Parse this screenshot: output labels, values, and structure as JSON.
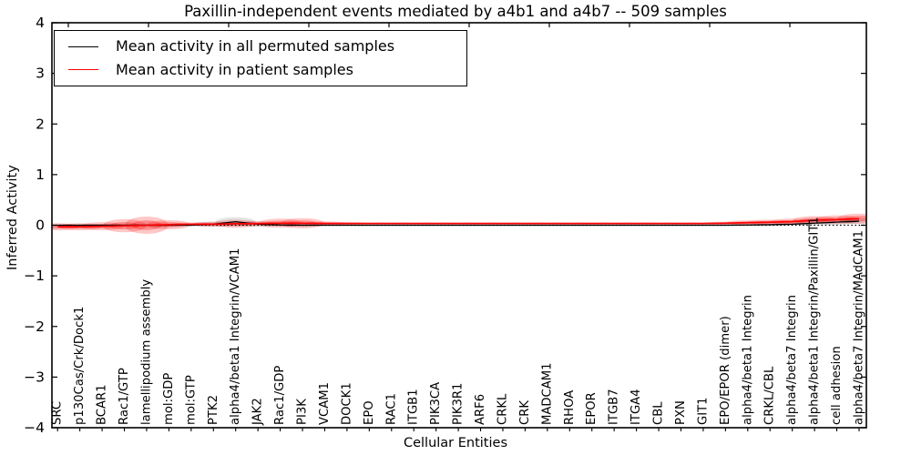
{
  "figure": {
    "title": "Paxillin-independent events mediated by a4b1 and a4b7 -- 509 samples",
    "xlabel": "Cellular Entities",
    "ylabel": "Inferred Activity"
  },
  "legend": {
    "entries": [
      {
        "label": "Mean activity in all permuted samples",
        "color": "#000000"
      },
      {
        "label": "Mean activity in patient samples",
        "color": "#ff0000"
      }
    ]
  },
  "chart_data": {
    "type": "line",
    "subtype": "violin-band-with-mean-lines",
    "title": "Paxillin-independent events mediated by a4b1 and a4b7 -- 509 samples",
    "xlabel": "Cellular Entities",
    "ylabel": "Inferred Activity",
    "ylim": [
      -4,
      4
    ],
    "yticks": [
      -4,
      -3,
      -2,
      -1,
      0,
      1,
      2,
      3,
      4
    ],
    "zero_reference_line": {
      "y": 0,
      "style": "dotted",
      "color": "#000000"
    },
    "legend_position": "upper left",
    "grid": false,
    "categories": [
      "SRC",
      "p130Cas/Crk/Dock1",
      "BCAR1",
      "Rac1/GTP",
      "lamellipodium assembly",
      "mol:GDP",
      "mol:GTP",
      "PTK2",
      "alpha4/beta1 Integrin/VCAM1",
      "JAK2",
      "Rac1/GDP",
      "PI3K",
      "VCAM1",
      "DOCK1",
      "EPO",
      "RAC1",
      "ITGB1",
      "PIK3CA",
      "PIK3R1",
      "ARF6",
      "CRKL",
      "CRK",
      "MADCAM1",
      "RHOA",
      "EPOR",
      "ITGB7",
      "ITGA4",
      "CBL",
      "PXN",
      "GIT1",
      "EPO/EPOR (dimer)",
      "alpha4/beta1 Integrin",
      "CRKL/CBL",
      "alpha4/beta7 Integrin",
      "alpha4/beta1 Integrin/Paxillin/GIT1",
      "cell adhesion",
      "alpha4/beta7 Integrin/MAdCAM1"
    ],
    "series": [
      {
        "name": "Mean activity in all permuted samples",
        "color": "#000000",
        "values": [
          0,
          0,
          0,
          0,
          0,
          0,
          0,
          0.02,
          0.07,
          0.02,
          0.005,
          0,
          0,
          0,
          0,
          0,
          0,
          0,
          0,
          0,
          0,
          0,
          0,
          0,
          0,
          0,
          0,
          0,
          0,
          0,
          0,
          0.005,
          0.01,
          0.02,
          0.04,
          0.06,
          0.08
        ]
      },
      {
        "name": "Mean activity in patient samples",
        "color": "#ff0000",
        "values": [
          -0.03,
          -0.03,
          -0.02,
          -0.01,
          0,
          0.01,
          0.02,
          0.02,
          0.03,
          0.03,
          0.04,
          0.04,
          0.035,
          0.035,
          0.035,
          0.035,
          0.035,
          0.035,
          0.035,
          0.035,
          0.035,
          0.035,
          0.035,
          0.035,
          0.035,
          0.035,
          0.035,
          0.035,
          0.035,
          0.035,
          0.04,
          0.05,
          0.06,
          0.07,
          0.1,
          0.11,
          0.13
        ]
      }
    ],
    "violin_half_spread": {
      "patient": [
        0.07,
        0.07,
        0.08,
        0.13,
        0.17,
        0.09,
        0.035,
        0.05,
        0.08,
        0.05,
        0.09,
        0.1,
        0.04,
        0.025,
        0.02,
        0.02,
        0.02,
        0.02,
        0.02,
        0.02,
        0.02,
        0.02,
        0.02,
        0.02,
        0.02,
        0.02,
        0.02,
        0.02,
        0.02,
        0.02,
        0.03,
        0.045,
        0.05,
        0.06,
        0.08,
        0.085,
        0.1
      ],
      "permuted": [
        0.02,
        0.02,
        0.02,
        0.03,
        0.03,
        0.02,
        0.015,
        0.05,
        0.09,
        0.05,
        0.03,
        0.03,
        0.015,
        0.012,
        0.012,
        0.012,
        0.012,
        0.012,
        0.012,
        0.012,
        0.012,
        0.012,
        0.012,
        0.012,
        0.012,
        0.012,
        0.012,
        0.012,
        0.012,
        0.012,
        0.015,
        0.02,
        0.025,
        0.03,
        0.045,
        0.05,
        0.055
      ]
    },
    "colors": {
      "patient_fill": "#ff0000",
      "permuted_fill": "#333333",
      "axis": "#000000"
    }
  }
}
